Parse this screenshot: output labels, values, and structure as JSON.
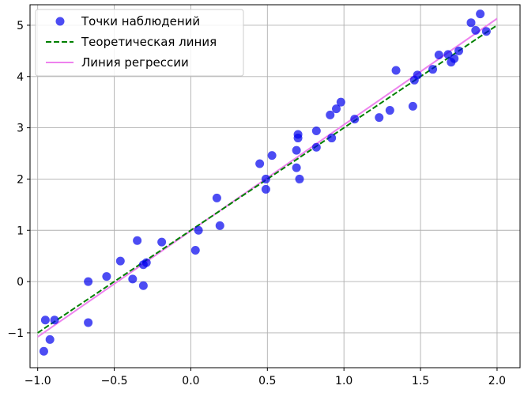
{
  "chart_data": {
    "type": "scatter",
    "xlim": [
      -1.05,
      2.15
    ],
    "ylim": [
      -1.68,
      5.4
    ],
    "xticks": [
      -1.0,
      -0.5,
      0.0,
      0.5,
      1.0,
      1.5,
      2.0
    ],
    "xtick_labels": [
      "−1.0",
      "−0.5",
      "0.0",
      "0.5",
      "1.0",
      "1.5",
      "2.0"
    ],
    "yticks": [
      -1,
      0,
      1,
      2,
      3,
      4,
      5
    ],
    "ytick_labels": [
      "−1",
      "0",
      "1",
      "2",
      "3",
      "4",
      "5"
    ],
    "grid": true,
    "legend_position": "top-left",
    "series": [
      {
        "name": "Точки наблюдений",
        "kind": "scatter",
        "color": "#0000ee",
        "points": [
          [
            -0.96,
            -1.36
          ],
          [
            -0.95,
            -0.75
          ],
          [
            -0.92,
            -1.13
          ],
          [
            -0.89,
            -0.75
          ],
          [
            -0.67,
            0.0
          ],
          [
            -0.67,
            -0.8
          ],
          [
            -0.55,
            0.1
          ],
          [
            -0.46,
            0.4
          ],
          [
            -0.38,
            0.05
          ],
          [
            -0.35,
            0.8
          ],
          [
            -0.31,
            -0.08
          ],
          [
            -0.31,
            0.33
          ],
          [
            -0.29,
            0.37
          ],
          [
            -0.19,
            0.77
          ],
          [
            0.03,
            0.61
          ],
          [
            0.05,
            1.0
          ],
          [
            0.17,
            1.63
          ],
          [
            0.19,
            1.09
          ],
          [
            0.45,
            2.3
          ],
          [
            0.49,
            1.8
          ],
          [
            0.49,
            2.0
          ],
          [
            0.53,
            2.46
          ],
          [
            0.69,
            2.22
          ],
          [
            0.69,
            2.56
          ],
          [
            0.7,
            2.8
          ],
          [
            0.7,
            2.87
          ],
          [
            0.71,
            2.0
          ],
          [
            0.82,
            2.62
          ],
          [
            0.82,
            2.94
          ],
          [
            0.91,
            3.25
          ],
          [
            0.92,
            2.8
          ],
          [
            0.95,
            3.37
          ],
          [
            0.98,
            3.5
          ],
          [
            1.07,
            3.17
          ],
          [
            1.23,
            3.2
          ],
          [
            1.3,
            3.34
          ],
          [
            1.34,
            4.12
          ],
          [
            1.45,
            3.42
          ],
          [
            1.46,
            3.93
          ],
          [
            1.48,
            4.03
          ],
          [
            1.58,
            4.14
          ],
          [
            1.62,
            4.42
          ],
          [
            1.68,
            4.43
          ],
          [
            1.7,
            4.28
          ],
          [
            1.72,
            4.35
          ],
          [
            1.75,
            4.5
          ],
          [
            1.83,
            5.05
          ],
          [
            1.86,
            4.9
          ],
          [
            1.89,
            5.22
          ],
          [
            1.93,
            4.88
          ]
        ]
      },
      {
        "name": "Теоретическая линия",
        "kind": "line",
        "style": "dashed",
        "color": "#008000",
        "x": [
          -1.0,
          2.0
        ],
        "y": [
          -1.0,
          5.0
        ]
      },
      {
        "name": "Линия регрессии",
        "kind": "line",
        "style": "solid",
        "color": "#ee82ee",
        "x": [
          -1.0,
          2.0
        ],
        "y": [
          -1.08,
          5.13
        ]
      }
    ]
  }
}
